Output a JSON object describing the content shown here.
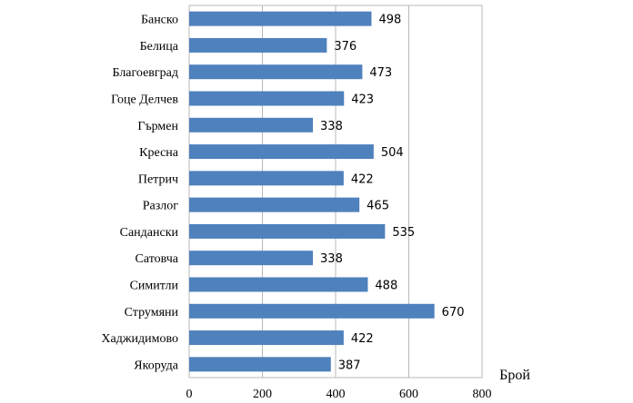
{
  "chart_data": {
    "type": "bar",
    "orientation": "horizontal",
    "categories": [
      "Банско",
      "Белица",
      "Благоевград",
      "Гоце Делчев",
      "Гърмен",
      "Кресна",
      "Петрич",
      "Разлог",
      "Сандански",
      "Сатовча",
      "Симитли",
      "Струмяни",
      "Хаджидимово",
      "Якоруда"
    ],
    "values": [
      498,
      376,
      473,
      423,
      338,
      504,
      422,
      465,
      535,
      338,
      488,
      670,
      422,
      387
    ],
    "data_labels": [
      "498",
      "376",
      "473",
      "423",
      "338",
      "504",
      "422",
      "465",
      "535",
      "338",
      "488",
      "670",
      "422",
      "387"
    ],
    "xlabel": "Брой",
    "ylabel": "",
    "title": "",
    "xlim": [
      0,
      800
    ],
    "x_ticks": [
      "0",
      "200",
      "400",
      "600",
      "800"
    ],
    "grid": "vertical",
    "legend": "none",
    "bar_color": "#4f81bd"
  }
}
